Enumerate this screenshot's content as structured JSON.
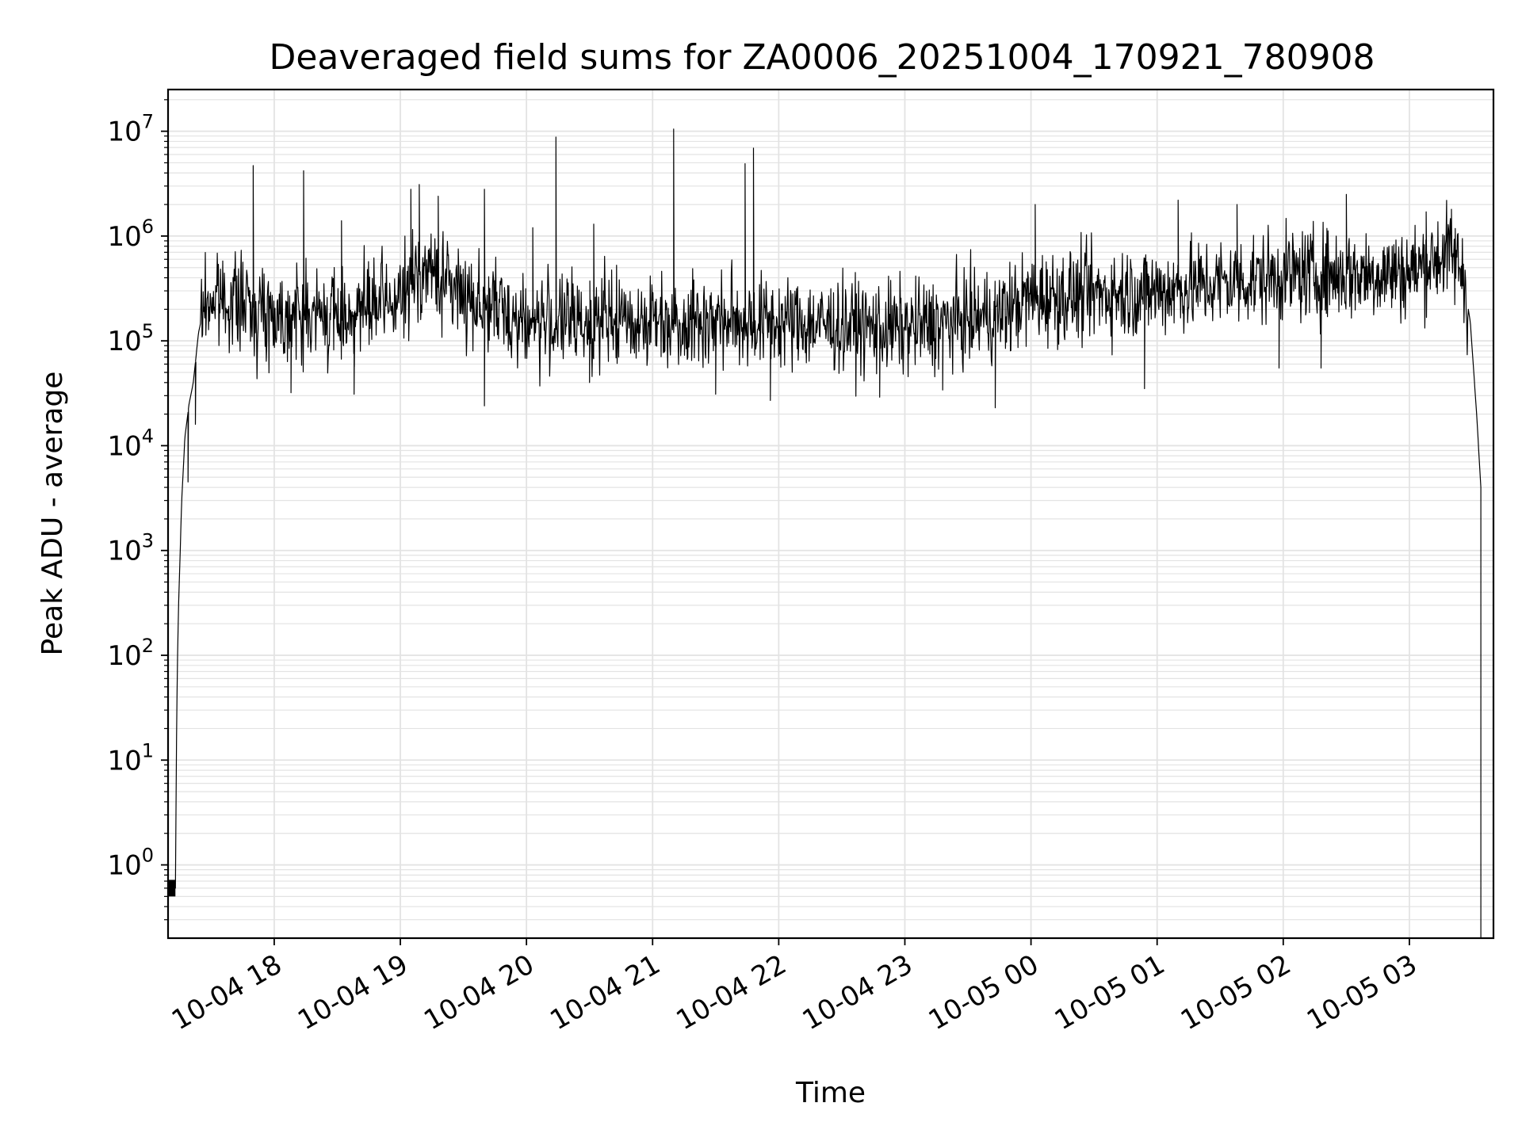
{
  "chart_data": {
    "type": "line",
    "title": "Deaveraged field sums for ZA0006_20251004_170921_780908",
    "xlabel": "Time",
    "ylabel": "Peak ADU - average",
    "yscale": "log",
    "ylim": [
      0.2,
      25000000
    ],
    "xlim": [
      "2025-10-04 17:09:30",
      "2025-10-05 03:40:00"
    ],
    "grid": true,
    "line_color": "#000000",
    "grid_color": "#e3e3e3",
    "x_ticks": [
      {
        "t": "2025-10-04 18:00",
        "label": "10-04 18"
      },
      {
        "t": "2025-10-04 19:00",
        "label": "10-04 19"
      },
      {
        "t": "2025-10-04 20:00",
        "label": "10-04 20"
      },
      {
        "t": "2025-10-04 21:00",
        "label": "10-04 21"
      },
      {
        "t": "2025-10-04 22:00",
        "label": "10-04 22"
      },
      {
        "t": "2025-10-04 23:00",
        "label": "10-04 23"
      },
      {
        "t": "2025-10-05 00:00",
        "label": "10-05 00"
      },
      {
        "t": "2025-10-05 01:00",
        "label": "10-05 01"
      },
      {
        "t": "2025-10-05 02:00",
        "label": "10-05 02"
      },
      {
        "t": "2025-10-05 03:00",
        "label": "10-05 03"
      }
    ],
    "y_ticks": [
      {
        "value": 1,
        "base": "10",
        "exp": "0"
      },
      {
        "value": 10,
        "base": "10",
        "exp": "1"
      },
      {
        "value": 100,
        "base": "10",
        "exp": "2"
      },
      {
        "value": 1000,
        "base": "10",
        "exp": "3"
      },
      {
        "value": 10000,
        "base": "10",
        "exp": "4"
      },
      {
        "value": 100000,
        "base": "10",
        "exp": "5"
      },
      {
        "value": 1000000,
        "base": "10",
        "exp": "6"
      },
      {
        "value": 10000000,
        "base": "10",
        "exp": "7"
      }
    ],
    "series": [
      {
        "envelope": [
          [
            "2025-10-04 17:09:30",
            0.6
          ],
          [
            "2025-10-04 17:13:00",
            0.6
          ],
          [
            "2025-10-04 17:13:30",
            15
          ],
          [
            "2025-10-04 17:14:00",
            90
          ],
          [
            "2025-10-04 17:14:30",
            300
          ],
          [
            "2025-10-04 17:16:00",
            3000
          ],
          [
            "2025-10-04 17:17:30",
            12000
          ],
          [
            "2025-10-04 17:19:30",
            25000
          ],
          [
            "2025-10-04 17:21:30",
            40000
          ],
          [
            "2025-10-04 17:24:00",
            120000
          ],
          [
            "2025-10-04 17:27:00",
            230000
          ],
          [
            "2025-10-04 17:35:00",
            260000
          ],
          [
            "2025-10-04 18:00:00",
            180000
          ],
          [
            "2025-10-04 18:30:00",
            170000
          ],
          [
            "2025-10-04 19:00:00",
            240000
          ],
          [
            "2025-10-04 19:10:00",
            500000
          ],
          [
            "2025-10-04 19:30:00",
            280000
          ],
          [
            "2025-10-04 20:00:00",
            150000
          ],
          [
            "2025-10-04 21:00:00",
            160000
          ],
          [
            "2025-10-04 22:00:00",
            150000
          ],
          [
            "2025-10-04 23:00:00",
            130000
          ],
          [
            "2025-10-04 23:45:00",
            180000
          ],
          [
            "2025-10-05 00:00:00",
            260000
          ],
          [
            "2025-10-05 01:00:00",
            300000
          ],
          [
            "2025-10-05 02:00:00",
            420000
          ],
          [
            "2025-10-05 03:00:00",
            450000
          ],
          [
            "2025-10-05 03:18:00",
            700000
          ],
          [
            "2025-10-05 03:25:00",
            500000
          ],
          [
            "2025-10-05 03:29:00",
            150000
          ],
          [
            "2025-10-05 03:32:00",
            20000
          ],
          [
            "2025-10-05 03:34:00",
            4000
          ]
        ],
        "peaks": [
          [
            "2025-10-04 17:50:00",
            4700000
          ],
          [
            "2025-10-04 18:14:00",
            4200000
          ],
          [
            "2025-10-04 18:32:00",
            1400000
          ],
          [
            "2025-10-04 19:05:00",
            2800000
          ],
          [
            "2025-10-04 19:09:00",
            3100000
          ],
          [
            "2025-10-04 19:18:00",
            2400000
          ],
          [
            "2025-10-04 19:40:00",
            2800000
          ],
          [
            "2025-10-04 20:03:00",
            1200000
          ],
          [
            "2025-10-04 20:14:00",
            8800000
          ],
          [
            "2025-10-04 20:32:00",
            1300000
          ],
          [
            "2025-10-04 21:10:00",
            10500000
          ],
          [
            "2025-10-04 21:44:00",
            4900000
          ],
          [
            "2025-10-04 21:48:00",
            6900000
          ],
          [
            "2025-10-05 00:02:00",
            2000000
          ],
          [
            "2025-10-05 01:10:00",
            2200000
          ],
          [
            "2025-10-05 01:38:00",
            2000000
          ],
          [
            "2025-10-05 02:30:00",
            2500000
          ],
          [
            "2025-10-05 03:08:00",
            1700000
          ],
          [
            "2025-10-05 03:20:00",
            1800000
          ]
        ],
        "dips": [
          [
            "2025-10-04 17:19:00",
            4500
          ],
          [
            "2025-10-04 17:22:30",
            16000
          ],
          [
            "2025-10-04 18:08:00",
            32000
          ],
          [
            "2025-10-04 18:38:00",
            31000
          ],
          [
            "2025-10-04 19:40:00",
            24000
          ],
          [
            "2025-10-04 20:30:00",
            40000
          ],
          [
            "2025-10-04 21:30:00",
            31000
          ],
          [
            "2025-10-04 21:56:00",
            27000
          ],
          [
            "2025-10-04 22:48:00",
            29000
          ],
          [
            "2025-10-04 23:18:00",
            34000
          ],
          [
            "2025-10-04 23:43:00",
            23000
          ],
          [
            "2025-10-05 00:54:00",
            35000
          ],
          [
            "2025-10-05 01:58:00",
            55000
          ],
          [
            "2025-10-05 02:18:00",
            55000
          ]
        ],
        "end_drop": [
          [
            "2025-10-05 03:34:00",
            0.2
          ]
        ]
      }
    ]
  }
}
